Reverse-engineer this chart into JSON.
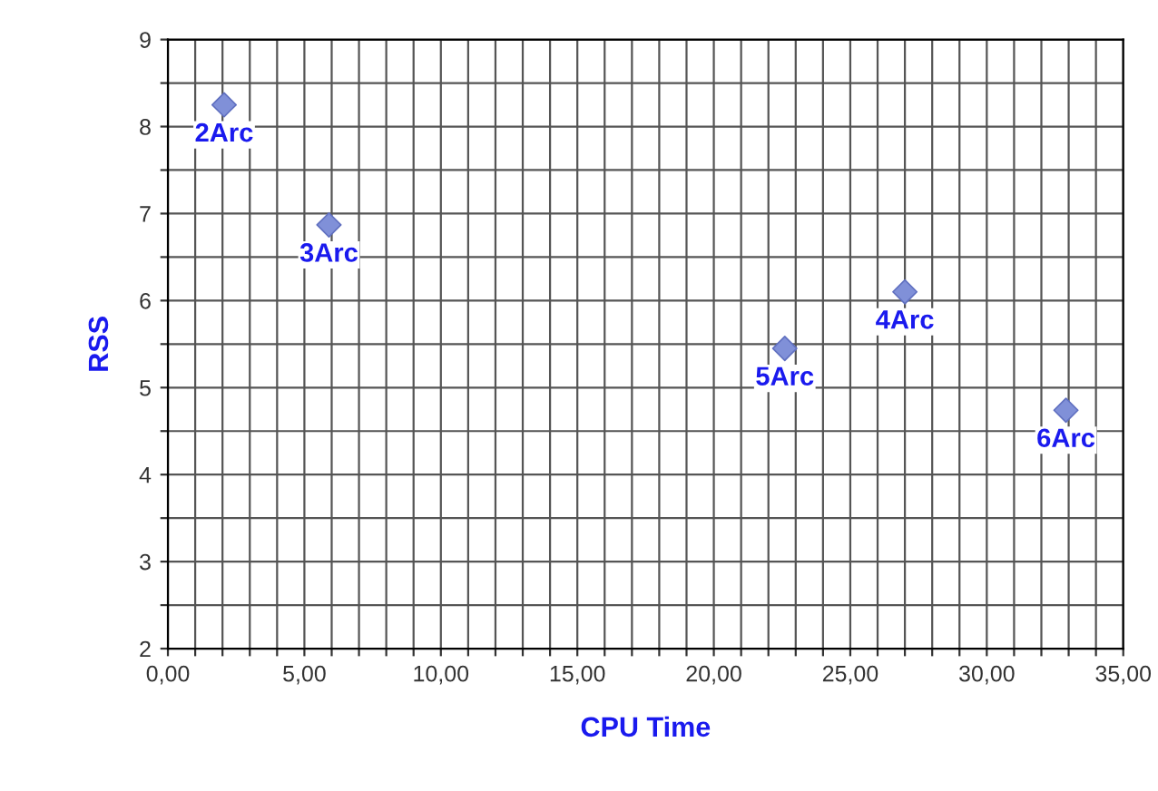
{
  "chart_data": {
    "type": "scatter",
    "xlabel": "CPU Time",
    "ylabel": "RSS",
    "series": [
      {
        "color": "#8090d8",
        "x": [
          2.06,
          5.9,
          22.6,
          27.0,
          32.9
        ],
        "values": [
          8.25,
          6.87,
          5.45,
          6.1,
          4.74
        ]
      }
    ],
    "annotations": [
      {
        "text": "2Arc",
        "x": 2.06,
        "y": 8.25
      },
      {
        "text": "3Arc",
        "x": 5.9,
        "y": 6.87
      },
      {
        "text": "5Arc",
        "x": 22.6,
        "y": 5.45
      },
      {
        "text": "4Arc",
        "x": 27.0,
        "y": 6.1
      },
      {
        "text": "6Arc",
        "x": 32.9,
        "y": 4.74
      }
    ],
    "marker": "diamond",
    "grid": true,
    "legend": false,
    "xlim": [
      0,
      35
    ],
    "ylim": [
      2,
      9
    ],
    "xticks": [
      {
        "value": 0,
        "label": "0,00"
      },
      {
        "value": 1,
        "label": null
      },
      {
        "value": 2,
        "label": null
      },
      {
        "value": 3,
        "label": null
      },
      {
        "value": 4,
        "label": null
      },
      {
        "value": 5,
        "label": "5,00"
      },
      {
        "value": 6,
        "label": null
      },
      {
        "value": 7,
        "label": null
      },
      {
        "value": 8,
        "label": null
      },
      {
        "value": 9,
        "label": null
      },
      {
        "value": 10,
        "label": "10,00"
      },
      {
        "value": 11,
        "label": null
      },
      {
        "value": 12,
        "label": null
      },
      {
        "value": 13,
        "label": null
      },
      {
        "value": 14,
        "label": null
      },
      {
        "value": 15,
        "label": "15,00"
      },
      {
        "value": 16,
        "label": null
      },
      {
        "value": 17,
        "label": null
      },
      {
        "value": 18,
        "label": null
      },
      {
        "value": 19,
        "label": null
      },
      {
        "value": 20,
        "label": "20,00"
      },
      {
        "value": 21,
        "label": null
      },
      {
        "value": 22,
        "label": null
      },
      {
        "value": 23,
        "label": null
      },
      {
        "value": 24,
        "label": null
      },
      {
        "value": 25,
        "label": "25,00"
      },
      {
        "value": 26,
        "label": null
      },
      {
        "value": 27,
        "label": null
      },
      {
        "value": 28,
        "label": null
      },
      {
        "value": 29,
        "label": null
      },
      {
        "value": 30,
        "label": "30,00"
      },
      {
        "value": 31,
        "label": null
      },
      {
        "value": 32,
        "label": null
      },
      {
        "value": 33,
        "label": null
      },
      {
        "value": 34,
        "label": null
      },
      {
        "value": 35,
        "label": "35,00"
      }
    ],
    "yticks": [
      2,
      {
        "value": 2.5,
        "label": null
      },
      3,
      {
        "value": 3.5,
        "label": null
      },
      4,
      {
        "value": 4.5,
        "label": null
      },
      5,
      {
        "value": 5.5,
        "label": null
      },
      6,
      {
        "value": 6.5,
        "label": null
      },
      7,
      {
        "value": 7.5,
        "label": null
      },
      8,
      {
        "value": 8.5,
        "label": null
      },
      9
    ]
  }
}
